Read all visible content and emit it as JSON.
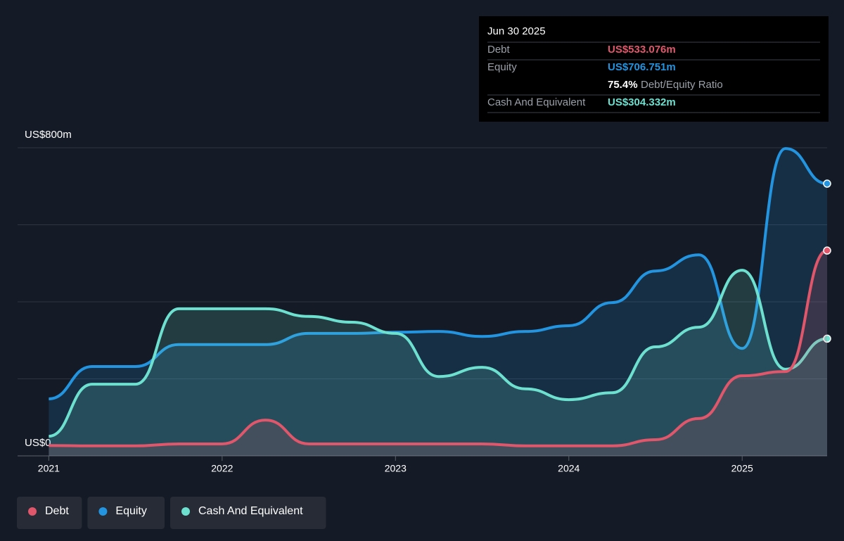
{
  "chart_data": {
    "type": "line",
    "x": [
      2021,
      2021.25,
      2021.5,
      2021.75,
      2022,
      2022.25,
      2022.5,
      2022.75,
      2023,
      2023.25,
      2023.5,
      2023.75,
      2024,
      2024.25,
      2024.5,
      2024.75,
      2025,
      2025.25,
      2025.49
    ],
    "xlim": [
      2020.82,
      2025.49
    ],
    "xticks": [
      2021,
      2022,
      2023,
      2024,
      2025
    ],
    "ylim": [
      0,
      800
    ],
    "yticks": [
      {
        "value": 0,
        "label": "US$0"
      },
      {
        "value": 800,
        "label": "US$800m"
      }
    ],
    "gridlines": [
      0,
      200,
      400,
      600,
      800
    ],
    "series": [
      {
        "name": "Debt",
        "color": "#e0566a",
        "values": [
          27,
          26,
          26,
          31,
          31,
          93,
          31,
          31,
          31,
          31,
          31,
          26,
          26,
          26,
          42,
          97,
          208,
          219,
          533.076
        ]
      },
      {
        "name": "Equity",
        "color": "#2394df",
        "values": [
          148,
          232,
          232,
          289,
          289,
          289,
          318,
          318,
          321,
          323,
          310,
          323,
          338,
          398,
          480,
          522,
          279,
          798,
          706.751
        ]
      },
      {
        "name": "Cash And Equivalent",
        "color": "#6de0d0",
        "values": [
          51,
          186,
          186,
          382,
          382,
          382,
          362,
          347,
          318,
          206,
          230,
          174,
          146,
          164,
          283,
          334,
          482,
          225,
          304.332
        ]
      }
    ],
    "tooltip": {
      "date": "Jun 30 2025",
      "rows": [
        {
          "label": "Debt",
          "value": "US$533.076m"
        },
        {
          "label": "Equity",
          "value": "US$706.751m"
        },
        {
          "label": "Cash And Equivalent",
          "value": "US$304.332m"
        }
      ],
      "ratio": "75.4%",
      "ratio_label": "Debt/Equity Ratio"
    }
  }
}
